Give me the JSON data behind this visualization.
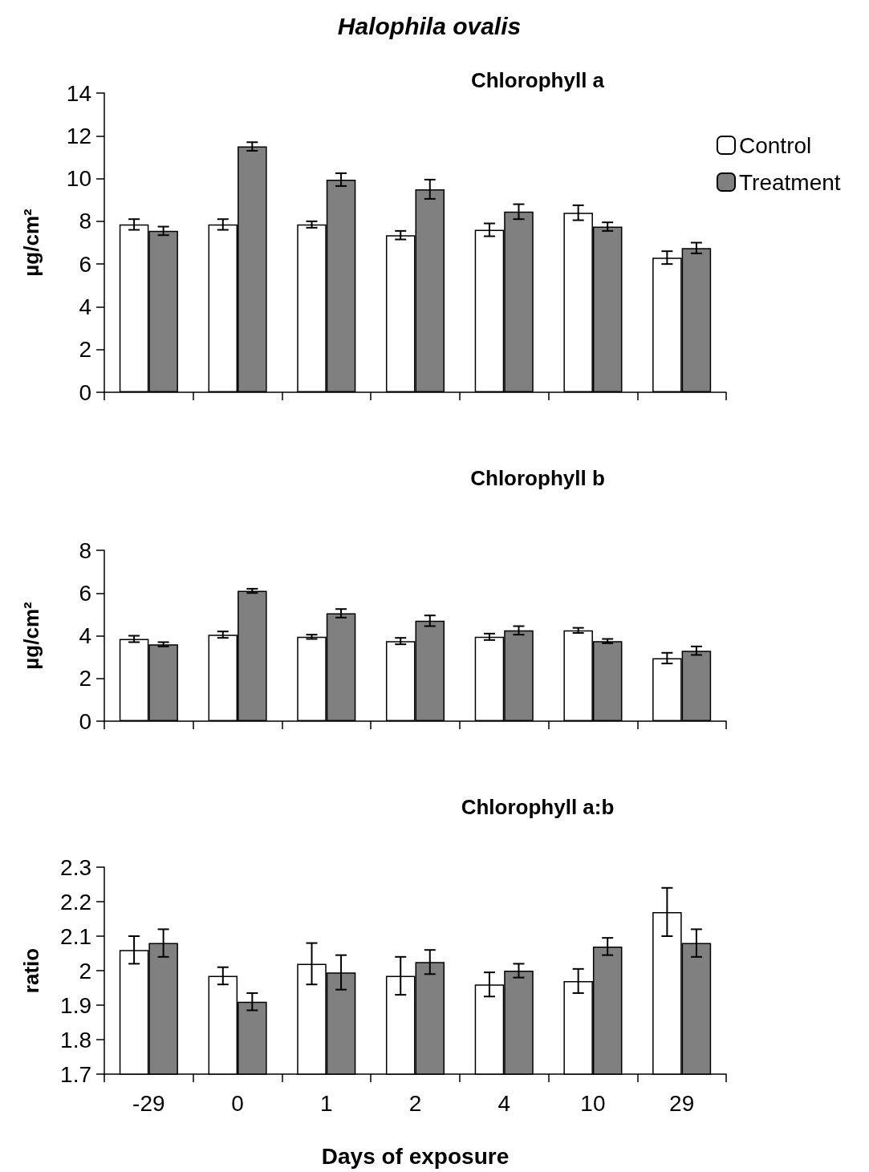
{
  "chart_data": [
    {
      "type": "bar",
      "title": "Halophila ovalis",
      "subtitle": "Chlorophyll a",
      "ylabel": "µg/cm²",
      "categories": [
        "-29",
        "0",
        "1",
        "2",
        "4",
        "10",
        "29"
      ],
      "ylim": [
        0,
        14
      ],
      "yticks": [
        0,
        2,
        4,
        6,
        8,
        10,
        12,
        14
      ],
      "grid": false,
      "legend": "top right",
      "tick_labels": "y",
      "series": [
        {
          "name": "Control",
          "color": "#ffffff",
          "values": [
            7.85,
            7.85,
            7.85,
            7.35,
            7.6,
            8.4,
            6.3
          ],
          "errors": [
            0.25,
            0.25,
            0.15,
            0.2,
            0.3,
            0.35,
            0.3
          ]
        },
        {
          "name": "Treatment",
          "color": "#808080",
          "values": [
            7.55,
            11.5,
            9.95,
            9.5,
            8.45,
            7.75,
            6.75
          ],
          "errors": [
            0.2,
            0.2,
            0.3,
            0.45,
            0.35,
            0.2,
            0.25
          ]
        }
      ]
    },
    {
      "type": "bar",
      "title": "Chlorophyll b",
      "ylabel": "µg/cm²",
      "categories": [
        "-29",
        "0",
        "1",
        "2",
        "4",
        "10",
        "29"
      ],
      "ylim": [
        0,
        8
      ],
      "yticks": [
        0,
        2,
        4,
        6,
        8
      ],
      "grid": false,
      "legend": false,
      "tick_labels": "y",
      "series": [
        {
          "color": "#ffffff",
          "values": [
            3.85,
            4.05,
            3.95,
            3.75,
            3.95,
            4.25,
            2.95
          ],
          "errors": [
            0.15,
            0.15,
            0.1,
            0.15,
            0.15,
            0.12,
            0.25
          ]
        },
        {
          "color": "#808080",
          "values": [
            3.6,
            6.1,
            5.05,
            4.7,
            4.25,
            3.75,
            3.3
          ],
          "errors": [
            0.1,
            0.1,
            0.2,
            0.25,
            0.2,
            0.1,
            0.2
          ]
        }
      ]
    },
    {
      "type": "bar",
      "title": "Chlorophyll a:b",
      "ylabel": "ratio",
      "xlabel": "Days of exposure",
      "categories": [
        "-29",
        "0",
        "1",
        "2",
        "4",
        "10",
        "29"
      ],
      "ylim": [
        1.7,
        2.3
      ],
      "yticks": [
        1.7,
        1.8,
        1.9,
        2,
        2.1,
        2.2,
        2.3
      ],
      "grid": false,
      "legend": false,
      "series": [
        {
          "color": "#ffffff",
          "values": [
            2.06,
            1.985,
            2.02,
            1.985,
            1.96,
            1.97,
            2.17
          ],
          "errors": [
            0.04,
            0.025,
            0.06,
            0.055,
            0.035,
            0.035,
            0.07
          ]
        },
        {
          "color": "#808080",
          "values": [
            2.08,
            1.91,
            1.995,
            2.025,
            2.0,
            2.07,
            2.08
          ],
          "errors": [
            0.04,
            0.025,
            0.05,
            0.035,
            0.02,
            0.025,
            0.04
          ]
        }
      ]
    }
  ]
}
